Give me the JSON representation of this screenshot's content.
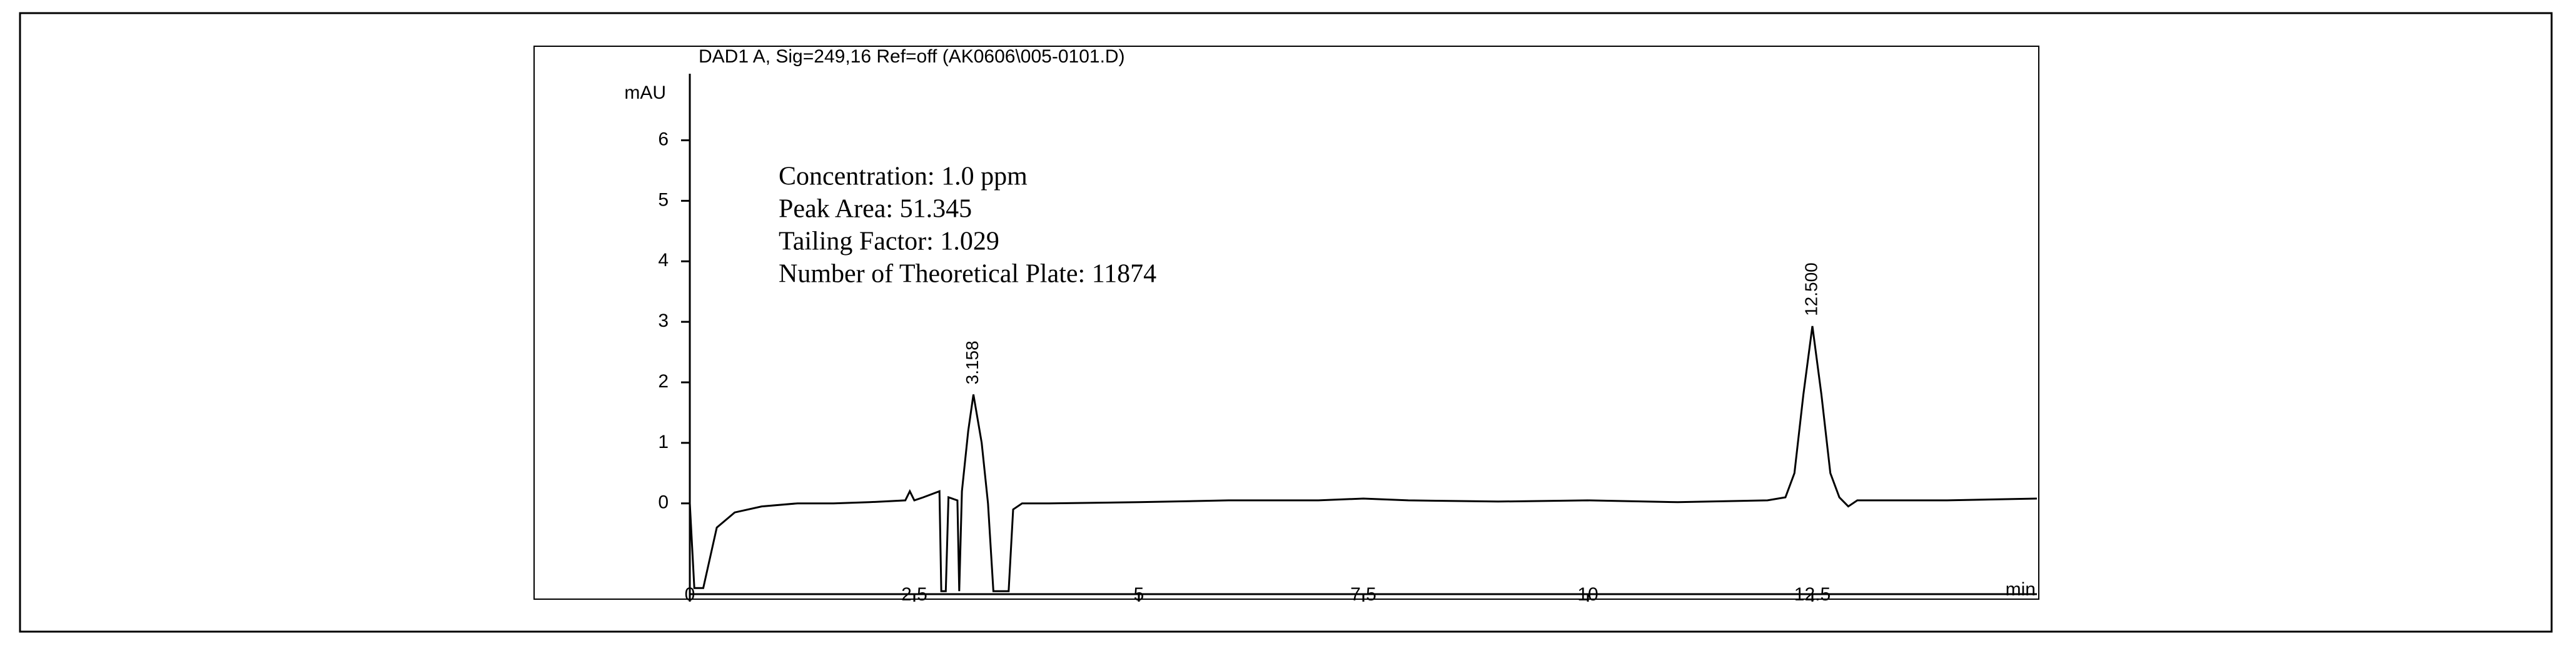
{
  "chart_data": {
    "type": "line",
    "title": "DAD1 A, Sig=249,16 Ref=off (AK0606\\005-0101.D)",
    "y_label": "mAU",
    "x_label": "min",
    "annotations": [
      "Concentration: 1.0 ppm",
      "Peak Area: 51.345",
      "Tailing Factor: 1.029",
      "Number of Theoretical Plate: 11874"
    ],
    "peak_labels": [
      {
        "value": 3.158,
        "label": "3.158"
      },
      {
        "value": 12.5,
        "label": "12.500"
      }
    ],
    "x": [
      0,
      0.05,
      0.15,
      0.3,
      0.5,
      0.8,
      1.2,
      1.6,
      2.0,
      2.4,
      2.45,
      2.5,
      2.6,
      2.78,
      2.8,
      2.85,
      2.88,
      2.98,
      3.0,
      3.03,
      3.1,
      3.158,
      3.25,
      3.32,
      3.38,
      3.55,
      3.6,
      3.7,
      4,
      5,
      6,
      7,
      7.5,
      8,
      9,
      10,
      11,
      12,
      12.2,
      12.3,
      12.4,
      12.5,
      12.6,
      12.7,
      12.8,
      12.9,
      13,
      14,
      15
    ],
    "values": [
      0,
      -1.4,
      -1.4,
      -0.4,
      -0.15,
      -0.05,
      0,
      0,
      0.02,
      0.05,
      0.2,
      0.05,
      0.1,
      0.2,
      -1.45,
      -1.45,
      0.1,
      0.05,
      -1.45,
      0.2,
      1.2,
      1.8,
      1.0,
      0,
      -1.45,
      -1.45,
      -0.1,
      0,
      0,
      0.02,
      0.05,
      0.05,
      0.08,
      0.05,
      0.03,
      0.05,
      0.02,
      0.05,
      0.1,
      0.5,
      1.8,
      2.93,
      1.8,
      0.5,
      0.1,
      -0.05,
      0.05,
      0.05,
      0.08
    ],
    "color": "#000000",
    "xlim": [
      0,
      15
    ],
    "ylim": [
      -1.5,
      7.1
    ],
    "xticks": [
      0,
      2.5,
      5,
      7.5,
      10,
      12.5
    ],
    "yticks": [
      0,
      1,
      2,
      3,
      4,
      5,
      6
    ]
  }
}
